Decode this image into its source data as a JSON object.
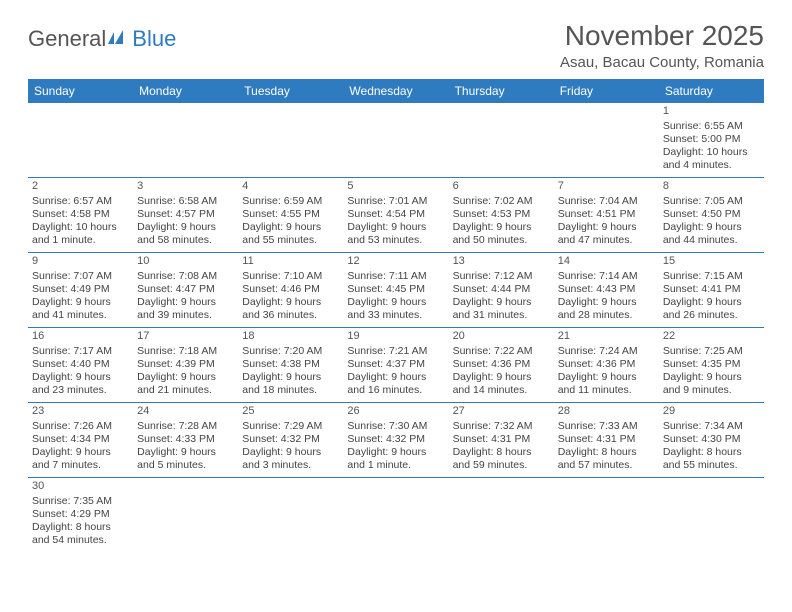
{
  "logo": {
    "text1": "General",
    "text2": "Blue"
  },
  "title": "November 2025",
  "location": "Asau, Bacau County, Romania",
  "colors": {
    "header_bg": "#2f7bbf",
    "header_text": "#ffffff",
    "border": "#2f7bbf",
    "text": "#444444",
    "title_text": "#555555"
  },
  "weekdays": [
    "Sunday",
    "Monday",
    "Tuesday",
    "Wednesday",
    "Thursday",
    "Friday",
    "Saturday"
  ],
  "weeks": [
    [
      {
        "day": "",
        "lines": [
          "",
          "",
          "",
          ""
        ]
      },
      {
        "day": "",
        "lines": [
          "",
          "",
          "",
          ""
        ]
      },
      {
        "day": "",
        "lines": [
          "",
          "",
          "",
          ""
        ]
      },
      {
        "day": "",
        "lines": [
          "",
          "",
          "",
          ""
        ]
      },
      {
        "day": "",
        "lines": [
          "",
          "",
          "",
          ""
        ]
      },
      {
        "day": "",
        "lines": [
          "",
          "",
          "",
          ""
        ]
      },
      {
        "day": "1",
        "lines": [
          "Sunrise: 6:55 AM",
          "Sunset: 5:00 PM",
          "Daylight: 10 hours",
          "and 4 minutes."
        ]
      }
    ],
    [
      {
        "day": "2",
        "lines": [
          "Sunrise: 6:57 AM",
          "Sunset: 4:58 PM",
          "Daylight: 10 hours",
          "and 1 minute."
        ]
      },
      {
        "day": "3",
        "lines": [
          "Sunrise: 6:58 AM",
          "Sunset: 4:57 PM",
          "Daylight: 9 hours",
          "and 58 minutes."
        ]
      },
      {
        "day": "4",
        "lines": [
          "Sunrise: 6:59 AM",
          "Sunset: 4:55 PM",
          "Daylight: 9 hours",
          "and 55 minutes."
        ]
      },
      {
        "day": "5",
        "lines": [
          "Sunrise: 7:01 AM",
          "Sunset: 4:54 PM",
          "Daylight: 9 hours",
          "and 53 minutes."
        ]
      },
      {
        "day": "6",
        "lines": [
          "Sunrise: 7:02 AM",
          "Sunset: 4:53 PM",
          "Daylight: 9 hours",
          "and 50 minutes."
        ]
      },
      {
        "day": "7",
        "lines": [
          "Sunrise: 7:04 AM",
          "Sunset: 4:51 PM",
          "Daylight: 9 hours",
          "and 47 minutes."
        ]
      },
      {
        "day": "8",
        "lines": [
          "Sunrise: 7:05 AM",
          "Sunset: 4:50 PM",
          "Daylight: 9 hours",
          "and 44 minutes."
        ]
      }
    ],
    [
      {
        "day": "9",
        "lines": [
          "Sunrise: 7:07 AM",
          "Sunset: 4:49 PM",
          "Daylight: 9 hours",
          "and 41 minutes."
        ]
      },
      {
        "day": "10",
        "lines": [
          "Sunrise: 7:08 AM",
          "Sunset: 4:47 PM",
          "Daylight: 9 hours",
          "and 39 minutes."
        ]
      },
      {
        "day": "11",
        "lines": [
          "Sunrise: 7:10 AM",
          "Sunset: 4:46 PM",
          "Daylight: 9 hours",
          "and 36 minutes."
        ]
      },
      {
        "day": "12",
        "lines": [
          "Sunrise: 7:11 AM",
          "Sunset: 4:45 PM",
          "Daylight: 9 hours",
          "and 33 minutes."
        ]
      },
      {
        "day": "13",
        "lines": [
          "Sunrise: 7:12 AM",
          "Sunset: 4:44 PM",
          "Daylight: 9 hours",
          "and 31 minutes."
        ]
      },
      {
        "day": "14",
        "lines": [
          "Sunrise: 7:14 AM",
          "Sunset: 4:43 PM",
          "Daylight: 9 hours",
          "and 28 minutes."
        ]
      },
      {
        "day": "15",
        "lines": [
          "Sunrise: 7:15 AM",
          "Sunset: 4:41 PM",
          "Daylight: 9 hours",
          "and 26 minutes."
        ]
      }
    ],
    [
      {
        "day": "16",
        "lines": [
          "Sunrise: 7:17 AM",
          "Sunset: 4:40 PM",
          "Daylight: 9 hours",
          "and 23 minutes."
        ]
      },
      {
        "day": "17",
        "lines": [
          "Sunrise: 7:18 AM",
          "Sunset: 4:39 PM",
          "Daylight: 9 hours",
          "and 21 minutes."
        ]
      },
      {
        "day": "18",
        "lines": [
          "Sunrise: 7:20 AM",
          "Sunset: 4:38 PM",
          "Daylight: 9 hours",
          "and 18 minutes."
        ]
      },
      {
        "day": "19",
        "lines": [
          "Sunrise: 7:21 AM",
          "Sunset: 4:37 PM",
          "Daylight: 9 hours",
          "and 16 minutes."
        ]
      },
      {
        "day": "20",
        "lines": [
          "Sunrise: 7:22 AM",
          "Sunset: 4:36 PM",
          "Daylight: 9 hours",
          "and 14 minutes."
        ]
      },
      {
        "day": "21",
        "lines": [
          "Sunrise: 7:24 AM",
          "Sunset: 4:36 PM",
          "Daylight: 9 hours",
          "and 11 minutes."
        ]
      },
      {
        "day": "22",
        "lines": [
          "Sunrise: 7:25 AM",
          "Sunset: 4:35 PM",
          "Daylight: 9 hours",
          "and 9 minutes."
        ]
      }
    ],
    [
      {
        "day": "23",
        "lines": [
          "Sunrise: 7:26 AM",
          "Sunset: 4:34 PM",
          "Daylight: 9 hours",
          "and 7 minutes."
        ]
      },
      {
        "day": "24",
        "lines": [
          "Sunrise: 7:28 AM",
          "Sunset: 4:33 PM",
          "Daylight: 9 hours",
          "and 5 minutes."
        ]
      },
      {
        "day": "25",
        "lines": [
          "Sunrise: 7:29 AM",
          "Sunset: 4:32 PM",
          "Daylight: 9 hours",
          "and 3 minutes."
        ]
      },
      {
        "day": "26",
        "lines": [
          "Sunrise: 7:30 AM",
          "Sunset: 4:32 PM",
          "Daylight: 9 hours",
          "and 1 minute."
        ]
      },
      {
        "day": "27",
        "lines": [
          "Sunrise: 7:32 AM",
          "Sunset: 4:31 PM",
          "Daylight: 8 hours",
          "and 59 minutes."
        ]
      },
      {
        "day": "28",
        "lines": [
          "Sunrise: 7:33 AM",
          "Sunset: 4:31 PM",
          "Daylight: 8 hours",
          "and 57 minutes."
        ]
      },
      {
        "day": "29",
        "lines": [
          "Sunrise: 7:34 AM",
          "Sunset: 4:30 PM",
          "Daylight: 8 hours",
          "and 55 minutes."
        ]
      }
    ],
    [
      {
        "day": "30",
        "lines": [
          "Sunrise: 7:35 AM",
          "Sunset: 4:29 PM",
          "Daylight: 8 hours",
          "and 54 minutes."
        ]
      },
      {
        "day": "",
        "lines": [
          "",
          "",
          "",
          ""
        ]
      },
      {
        "day": "",
        "lines": [
          "",
          "",
          "",
          ""
        ]
      },
      {
        "day": "",
        "lines": [
          "",
          "",
          "",
          ""
        ]
      },
      {
        "day": "",
        "lines": [
          "",
          "",
          "",
          ""
        ]
      },
      {
        "day": "",
        "lines": [
          "",
          "",
          "",
          ""
        ]
      },
      {
        "day": "",
        "lines": [
          "",
          "",
          "",
          ""
        ]
      }
    ]
  ]
}
